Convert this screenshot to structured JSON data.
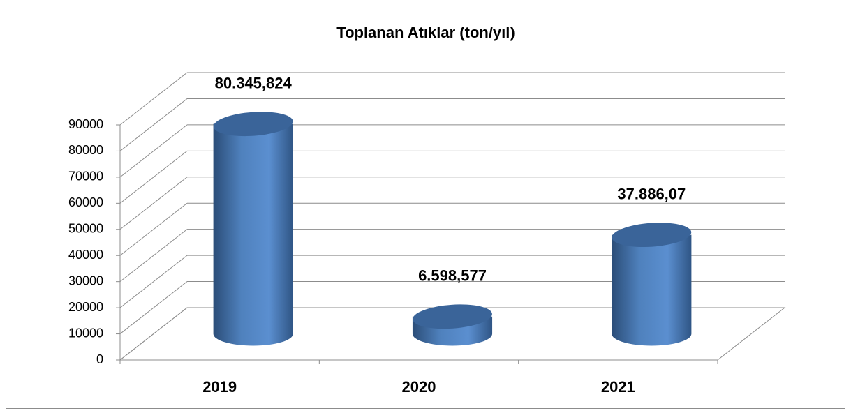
{
  "chart_data": {
    "type": "bar",
    "title": "Toplanan Atıklar (ton/yıl)",
    "categories": [
      "2019",
      "2020",
      "2021"
    ],
    "values": [
      80345.824,
      6598.577,
      37886.07
    ],
    "value_labels": [
      "80.345,824",
      "6.598,577",
      "37.886,07"
    ],
    "color": "#4f81bd",
    "ylim": [
      0,
      90000
    ],
    "yticks": [
      0,
      10000,
      20000,
      30000,
      40000,
      50000,
      60000,
      70000,
      80000,
      90000
    ],
    "grid": true
  }
}
